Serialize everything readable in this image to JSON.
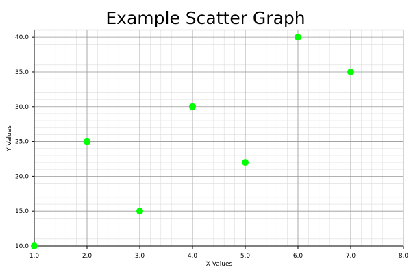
{
  "chart_data": {
    "type": "scatter",
    "title": "Example Scatter Graph",
    "xlabel": "X Values",
    "ylabel": "Y Values",
    "xlim": [
      1.0,
      8.0
    ],
    "ylim": [
      10.0,
      41.0
    ],
    "x_ticks": [
      "1.0",
      "2.0",
      "3.0",
      "4.0",
      "5.0",
      "6.0",
      "7.0",
      "8.0"
    ],
    "y_ticks": [
      "10.0",
      "15.0",
      "20.0",
      "25.0",
      "30.0",
      "35.0",
      "40.0"
    ],
    "grid": true,
    "point_color": "#00ff00",
    "points": [
      {
        "x": 1,
        "y": 10
      },
      {
        "x": 2,
        "y": 25
      },
      {
        "x": 3,
        "y": 15
      },
      {
        "x": 4,
        "y": 30
      },
      {
        "x": 5,
        "y": 22
      },
      {
        "x": 6,
        "y": 40
      },
      {
        "x": 7,
        "y": 35
      }
    ]
  }
}
